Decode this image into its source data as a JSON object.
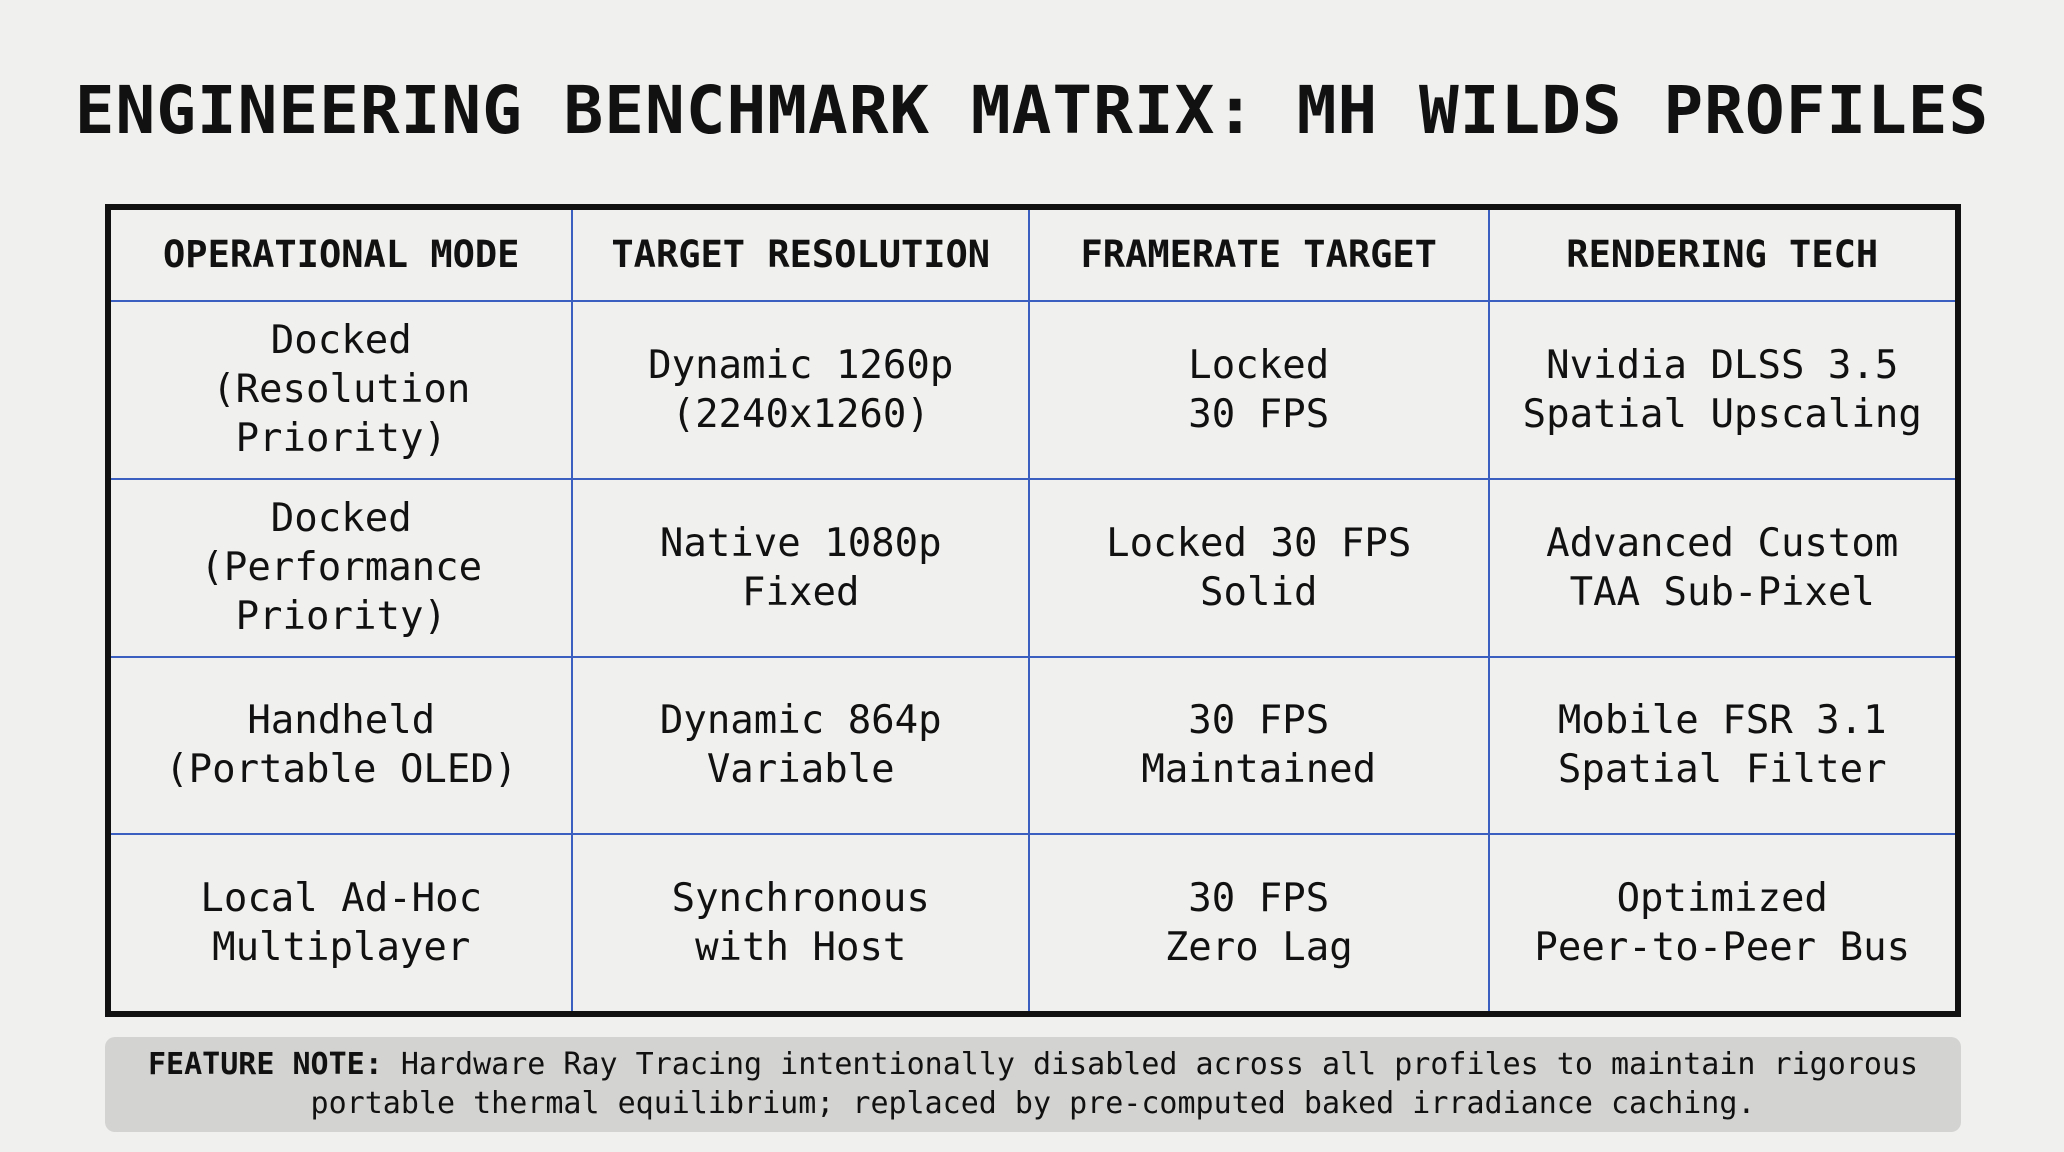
{
  "title": "ENGINEERING BENCHMARK MATRIX: MH WILDS PROFILES",
  "table": {
    "header": [
      "OPERATIONAL MODE",
      "TARGET RESOLUTION",
      "FRAMERATE TARGET",
      "RENDERING TECH"
    ],
    "rows": [
      [
        [
          "Docked",
          "(Resolution",
          "Priority)"
        ],
        [
          "Dynamic 1260p",
          "(2240x1260)"
        ],
        [
          "Locked",
          "30 FPS"
        ],
        [
          "Nvidia DLSS 3.5",
          "Spatial Upscaling"
        ]
      ],
      [
        [
          "Docked",
          "(Performance",
          "Priority)"
        ],
        [
          "Native 1080p",
          "Fixed"
        ],
        [
          "Locked 30 FPS",
          "Solid"
        ],
        [
          "Advanced Custom",
          "TAA Sub-Pixel"
        ]
      ],
      [
        [
          "Handheld",
          "(Portable OLED)"
        ],
        [
          "Dynamic 864p",
          "Variable"
        ],
        [
          "30 FPS",
          "Maintained"
        ],
        [
          "Mobile FSR 3.1",
          "Spatial Filter"
        ]
      ],
      [
        [
          "Local Ad-Hoc",
          "Multiplayer"
        ],
        [
          "Synchronous",
          "with Host"
        ],
        [
          "30 FPS",
          "Zero Lag"
        ],
        [
          "Optimized",
          "Peer-to-Peer Bus"
        ]
      ]
    ]
  },
  "note": {
    "label": "FEATURE NOTE:",
    "text": "Hardware Ray Tracing intentionally disabled across all profiles to maintain rigorous portable thermal equilibrium; replaced by pre-computed baked irradiance caching."
  }
}
